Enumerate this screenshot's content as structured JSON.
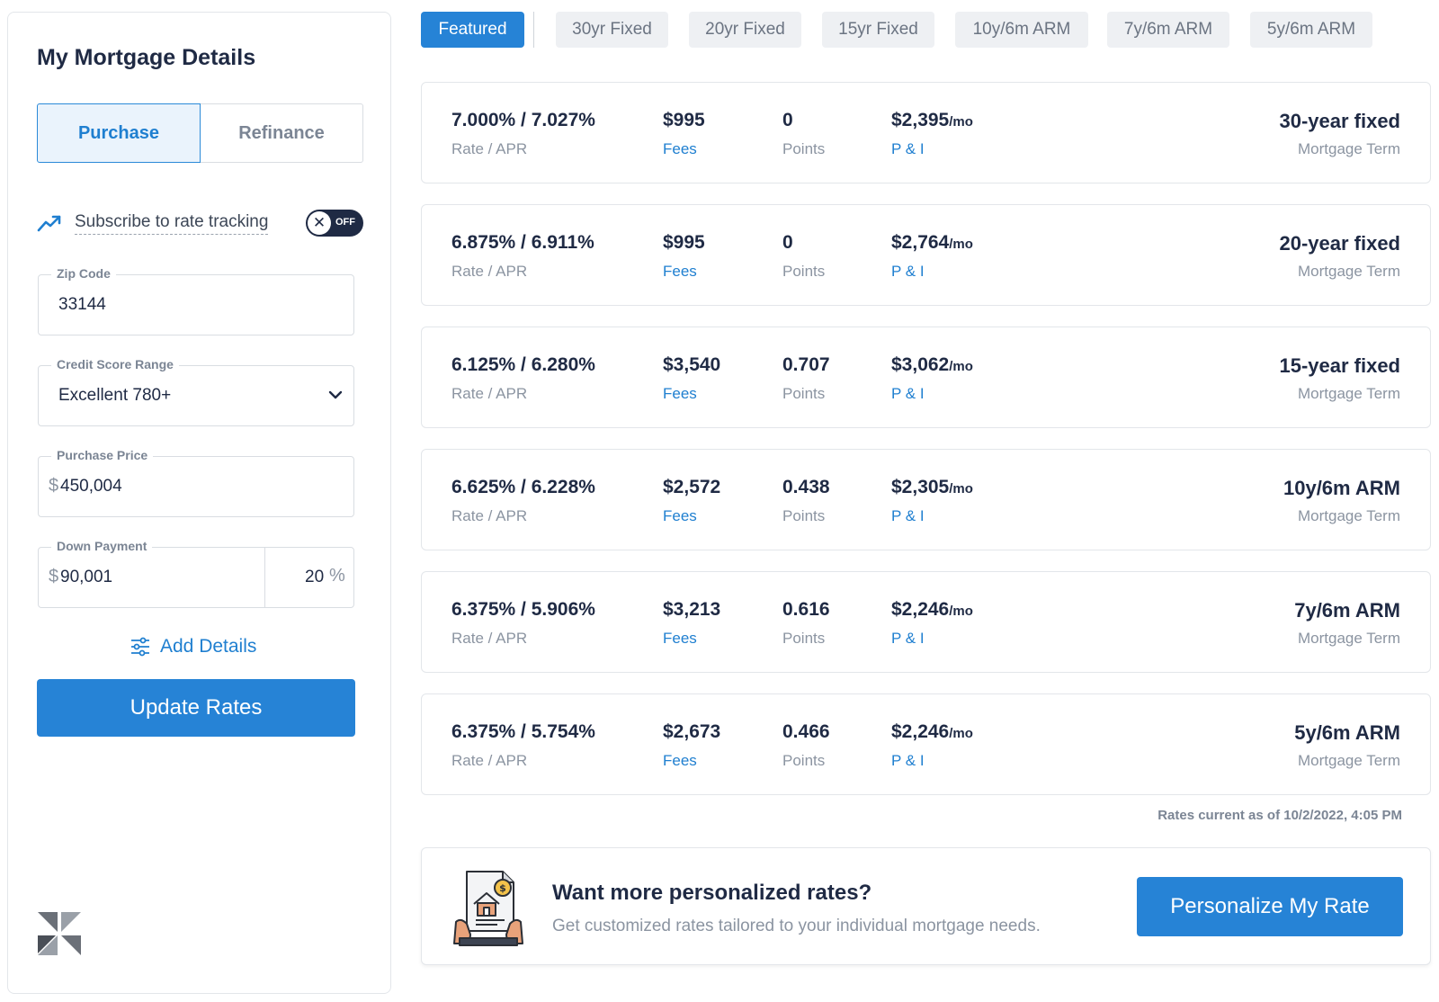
{
  "sidebar": {
    "title": "My Mortgage Details",
    "loan_type": {
      "purchase": "Purchase",
      "refinance": "Refinance",
      "selected": "Purchase"
    },
    "rate_tracking": {
      "label": "Subscribe to rate tracking",
      "state": "OFF",
      "knob": "✕"
    },
    "zip": {
      "label": "Zip Code",
      "value": "33144"
    },
    "credit": {
      "label": "Credit Score Range",
      "value": "Excellent 780+"
    },
    "price": {
      "label": "Purchase Price",
      "currency": "$",
      "value": "450,004"
    },
    "down": {
      "label": "Down Payment",
      "currency": "$",
      "value": "90,001",
      "percent": "20",
      "percent_sign": "%"
    },
    "add_details": "Add Details",
    "update_button": "Update Rates"
  },
  "tabs": [
    {
      "label": "Featured",
      "active": true
    },
    {
      "label": "30yr Fixed"
    },
    {
      "label": "20yr Fixed"
    },
    {
      "label": "15yr Fixed"
    },
    {
      "label": "10y/6m ARM"
    },
    {
      "label": "7y/6m ARM"
    },
    {
      "label": "5y/6m ARM"
    }
  ],
  "labels": {
    "rate_apr": "Rate / APR",
    "fees": "Fees",
    "points": "Points",
    "pi": "P & I",
    "per_month": "/mo",
    "term": "Mortgage Term"
  },
  "rates": [
    {
      "rate_apr": "7.000% / 7.027%",
      "fees": "$995",
      "points": "0",
      "payment": "$2,395",
      "term": "30-year fixed"
    },
    {
      "rate_apr": "6.875% / 6.911%",
      "fees": "$995",
      "points": "0",
      "payment": "$2,764",
      "term": "20-year fixed"
    },
    {
      "rate_apr": "6.125% / 6.280%",
      "fees": "$3,540",
      "points": "0.707",
      "payment": "$3,062",
      "term": "15-year fixed"
    },
    {
      "rate_apr": "6.625% / 6.228%",
      "fees": "$2,572",
      "points": "0.438",
      "payment": "$2,305",
      "term": "10y/6m ARM"
    },
    {
      "rate_apr": "6.375% / 5.906%",
      "fees": "$3,213",
      "points": "0.616",
      "payment": "$2,246",
      "term": "7y/6m ARM"
    },
    {
      "rate_apr": "6.375% / 5.754%",
      "fees": "$2,673",
      "points": "0.466",
      "payment": "$2,246",
      "term": "5y/6m ARM"
    }
  ],
  "rates_as_of": "Rates current as of 10/2/2022, 4:05 PM",
  "promo": {
    "title": "Want more personalized rates?",
    "text": "Get customized rates tailored to your individual mortgage needs.",
    "button": "Personalize My Rate"
  },
  "colors": {
    "accent": "#2683d6",
    "navy": "#1f2a44",
    "muted": "#8b94a1"
  },
  "icons": [
    "trend-up-icon",
    "close-icon",
    "chevron-down-icon",
    "sliders-icon",
    "logo-mark",
    "document-house-icon"
  ]
}
